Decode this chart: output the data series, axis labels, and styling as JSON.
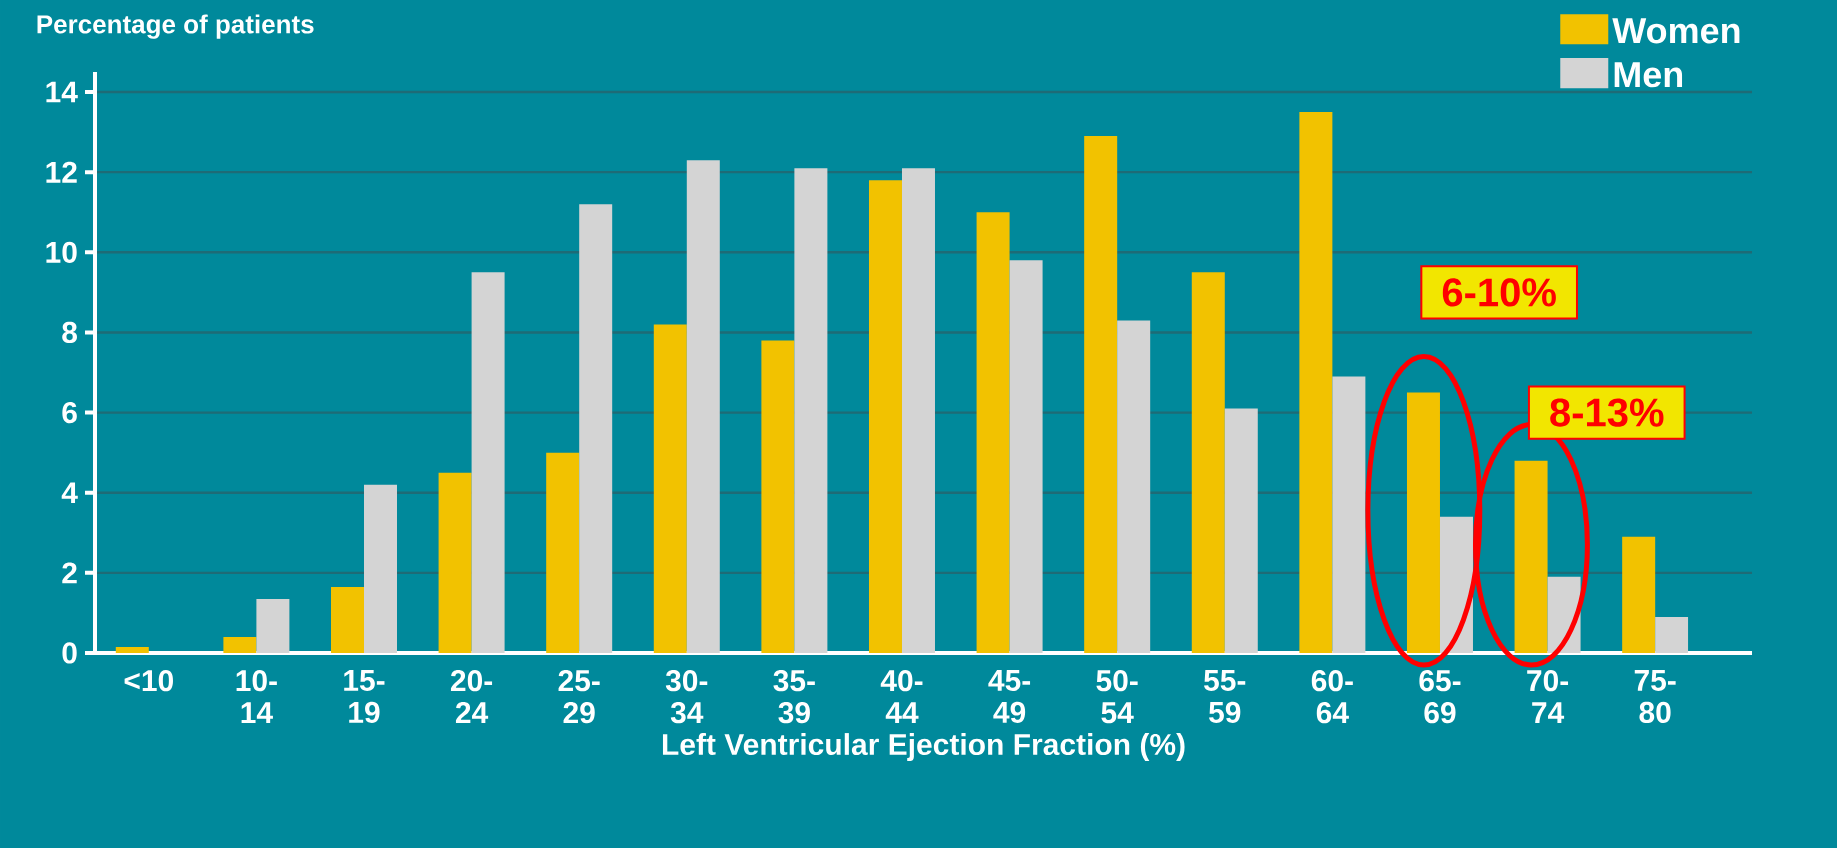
{
  "chart_data": {
    "type": "bar",
    "ylabel": "Percentage of patients",
    "xlabel": "Left Ventricular Ejection Fraction (%)",
    "categories": [
      "<10",
      "10-14",
      "15-19",
      "20-24",
      "25-29",
      "30-34",
      "35-39",
      "40-44",
      "45-49",
      "50-54",
      "55-59",
      "60-64",
      "65-69",
      "70-74",
      "75-80"
    ],
    "series": [
      {
        "name": "Women",
        "color": "#f2c200",
        "values": [
          0.15,
          0.4,
          1.65,
          4.5,
          5.0,
          8.2,
          7.8,
          11.8,
          11.0,
          12.9,
          9.5,
          13.5,
          6.5,
          4.8,
          2.9
        ]
      },
      {
        "name": "Men",
        "color": "#d4d4d4",
        "values": [
          null,
          1.35,
          4.2,
          9.5,
          11.2,
          12.3,
          12.1,
          12.1,
          9.8,
          8.3,
          6.1,
          6.9,
          3.4,
          1.9,
          0.9
        ]
      }
    ],
    "ylim": [
      0,
      14.5
    ],
    "yticks": [
      0,
      2,
      4,
      6,
      8,
      10,
      12,
      14
    ],
    "grid": "y",
    "legend": "top right",
    "annotations": [
      "6-10%",
      "8-13%"
    ]
  }
}
